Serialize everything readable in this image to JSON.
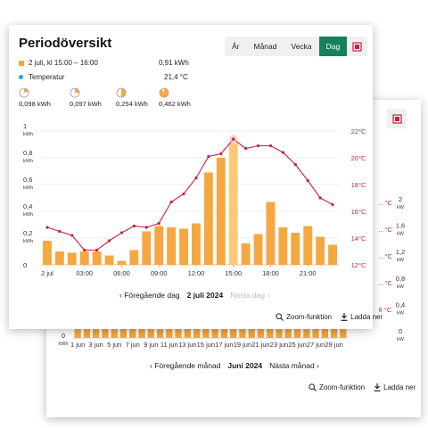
{
  "front": {
    "title": "Periodöversikt",
    "tabs": [
      "År",
      "Månad",
      "Vecka",
      "Dag"
    ],
    "active_tab": "Dag",
    "energy_label": "2 juli, kl 15:00 – 16:00",
    "energy_value": "0,91 kWh",
    "temp_label": "Temperatur",
    "temp_value": "21,4 °C",
    "pie_values": [
      "0,098 kWh",
      "0,097 kWh",
      "0,254 kWh",
      "0,462 kWh"
    ],
    "pie_fractions": [
      0.2,
      0.25,
      0.5,
      0.9
    ],
    "nav": {
      "prev": "‹ Föregående dag",
      "current": "2 juli 2024",
      "next": "Nästa dag ›"
    },
    "actions": {
      "zoom": "Zoom-funktion",
      "download": "Ladda ner"
    },
    "colors": {
      "bar": "#f5a742",
      "bar_highlight": "#fbc97a",
      "line": "#c8203d",
      "accent": "#13815a"
    }
  },
  "back": {
    "x_ticks": [
      "1 jun",
      "3 jun",
      "5 jun",
      "7 jun",
      "9 jun",
      "11 jun",
      "13 jun",
      "15 jun",
      "17 jun",
      "19 jun",
      "21 jun",
      "23 jun",
      "25 jun",
      "27 jun",
      "29 jun"
    ],
    "right_ticks": [
      "2",
      "1,6",
      "1,2",
      "0,8",
      "0,4",
      "0"
    ],
    "right_unit": "kW",
    "left_ticks": [
      "…°C",
      "…°C",
      "…°C",
      "…°C",
      "6 °C"
    ],
    "left_zero": "0",
    "left_unit": "kWh",
    "nav": {
      "prev": "‹ Föregående månad",
      "current": "Juni 2024",
      "next": "Nästa månad ›"
    },
    "actions": {
      "zoom": "Zoom-funktion",
      "download": "Ladda ner"
    }
  },
  "chart_data": {
    "type": "bar",
    "title": "",
    "categories": [
      "00:00",
      "01:00",
      "02:00",
      "03:00",
      "04:00",
      "05:00",
      "06:00",
      "07:00",
      "08:00",
      "09:00",
      "10:00",
      "11:00",
      "12:00",
      "13:00",
      "14:00",
      "15:00",
      "16:00",
      "17:00",
      "18:00",
      "19:00",
      "20:00",
      "21:00",
      "22:00",
      "23:00"
    ],
    "x_tick_labels": [
      "2 jul",
      "03:00",
      "06:00",
      "09:00",
      "12:00",
      "15:00",
      "18:00",
      "21:00"
    ],
    "series": [
      {
        "values": [
          0.18,
          0.1,
          0.09,
          0.1,
          0.1,
          0.07,
          0.03,
          0.11,
          0.25,
          0.29,
          0.28,
          0.27,
          0.31,
          0.69,
          0.8,
          0.91,
          0.16,
          0.23,
          0.47,
          0.28,
          0.24,
          0.29,
          0.21,
          0.15
        ]
      },
      {
        "axis": "right",
        "values": [
          14.8,
          14.5,
          14.2,
          13.1,
          13.1,
          13.8,
          14.4,
          14.9,
          14.8,
          15.1,
          16.7,
          17.3,
          18.5,
          20.1,
          20.3,
          21.4,
          20.7,
          20.9,
          20.9,
          20.4,
          19.5,
          18.3,
          17.0,
          16.5
        ]
      }
    ],
    "highlight_index": 15,
    "y_left_ticks": [
      "0",
      "0,2\nkWh",
      "0,4\nkWh",
      "0,6\nkWh",
      "0,8\nkWh",
      "1\nkWh"
    ],
    "y_right_ticks": [
      "12°C",
      "14°C",
      "16°C",
      "18°C",
      "20°C",
      "22°C"
    ],
    "ylim_left": [
      0,
      1
    ],
    "ylim_right": [
      12,
      22
    ]
  }
}
